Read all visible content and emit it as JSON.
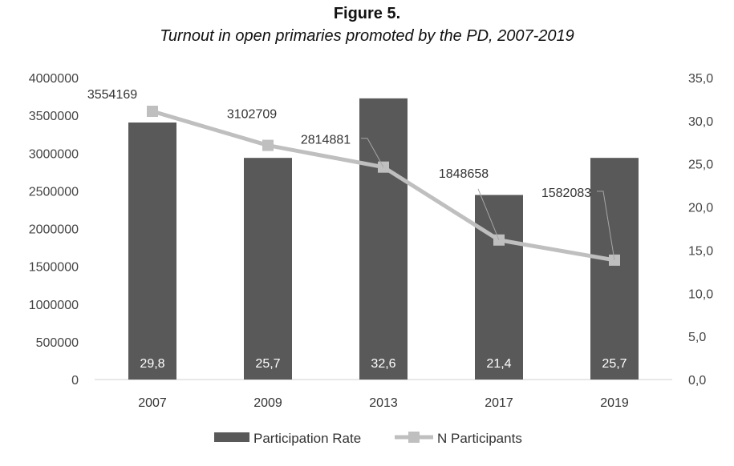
{
  "chart_data": {
    "type": "bar",
    "title": "Figure 5.",
    "subtitle": "Turnout in open primaries promoted by the PD, 2007-2019",
    "categories": [
      "2007",
      "2009",
      "2013",
      "2017",
      "2019"
    ],
    "series": [
      {
        "name": "Participation Rate",
        "type": "bar",
        "axis": "right",
        "values": [
          29.8,
          25.7,
          32.6,
          21.4,
          25.7
        ],
        "labels": [
          "29,8",
          "25,7",
          "32,6",
          "21,4",
          "25,7"
        ],
        "color": "#595959"
      },
      {
        "name": "N Participants",
        "type": "line",
        "axis": "left",
        "values": [
          3554169,
          3102709,
          2814881,
          1848658,
          1582083
        ],
        "labels": [
          "3554169",
          "3102709",
          "2814881",
          "1848658",
          "1582083"
        ],
        "color": "#bfbfbf"
      }
    ],
    "y_left": {
      "min": 0,
      "max": 4000000,
      "ticks": [
        "0",
        "500000",
        "1000000",
        "1500000",
        "2000000",
        "2500000",
        "3000000",
        "3500000",
        "4000000"
      ]
    },
    "y_right": {
      "min": 0,
      "max": 35,
      "ticks": [
        "0,0",
        "5,0",
        "10,0",
        "15,0",
        "20,0",
        "25,0",
        "30,0",
        "35,0"
      ]
    },
    "grid": false,
    "legend": "bottom-center"
  }
}
